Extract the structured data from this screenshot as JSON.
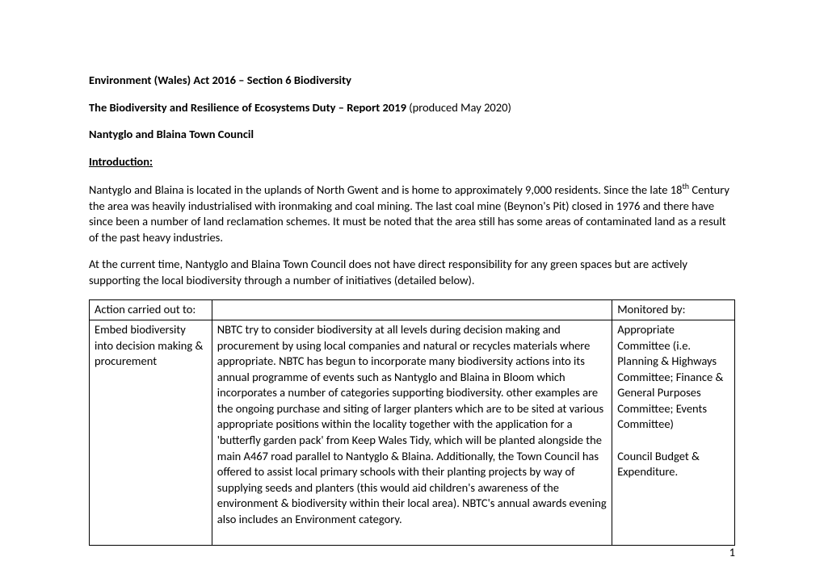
{
  "heading1": "Environment (Wales) Act 2016 – Section 6 Biodiversity",
  "heading2_bold": "The Biodiversity and Resilience of Ecosystems Duty – Report 2019 ",
  "heading2_rest": "(produced May 2020)",
  "heading3": "Nantyglo and Blaina Town Council",
  "intro_label": "Introduction:",
  "intro_para1_a": "Nantyglo and Blaina is located in the uplands of North Gwent and is home to approximately 9,000 residents. Since the late 18",
  "intro_para1_sup": "th",
  "intro_para1_b": " Century the area was heavily industrialised with ironmaking and coal mining. The last coal mine (Beynon's Pit) closed in 1976 and there have since been a number of land reclamation schemes. It must be noted that the area still has some areas of contaminated land as a result of the past heavy industries.",
  "intro_para2": "At the current time, Nantyglo and Blaina Town Council does not have direct responsibility for any green spaces but are actively supporting the local biodiversity through a number of initiatives (detailed below).",
  "table": {
    "header_col1": "Action carried out to:",
    "header_col2": "",
    "header_col3": "Monitored by:",
    "row1_col1": "Embed biodiversity into decision making & procurement",
    "row1_col2": "NBTC try to consider biodiversity at all levels during decision making and procurement by using local companies and natural or recycles materials where appropriate. NBTC has begun to incorporate many biodiversity actions into its annual programme of events such as Nantyglo and Blaina in Bloom which incorporates a number of categories supporting biodiversity. other examples are the ongoing purchase and siting of larger planters which are to be sited at various appropriate positions within the locality together with the application for a 'butterfly garden pack' from Keep Wales Tidy, which will be planted alongside the main A467 road parallel to Nantyglo & Blaina. Additionally, the Town Council has offered to assist local primary schools with their planting projects by way of supplying seeds and planters (this would aid children's awareness of the environment & biodiversity within their local area). NBTC's annual awards evening also includes an Environment category.",
    "row1_col3_a": "Appropriate Committee (i.e. Planning & Highways Committee; Finance & General Purposes Committee; Events Committee)",
    "row1_col3_b": "Council Budget & Expenditure."
  },
  "page_number": "1",
  "style": {
    "font_family": "Calibri, Arial, sans-serif",
    "font_size_pt": 11,
    "text_color": "#000000",
    "background_color": "#ffffff",
    "table_border_color": "#000000"
  }
}
